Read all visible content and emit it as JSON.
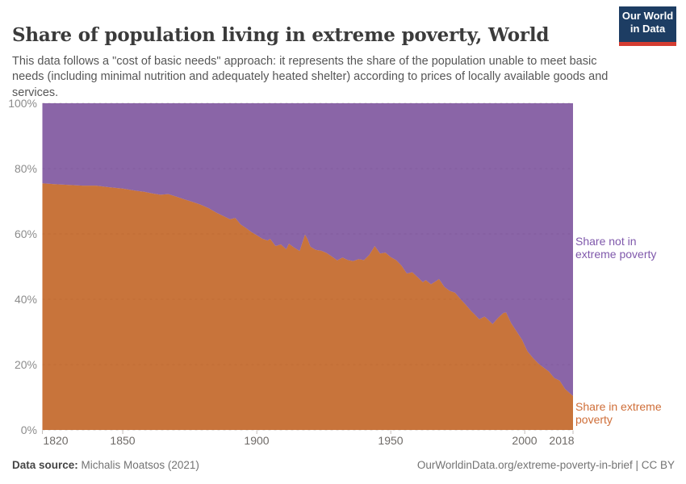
{
  "header": {
    "title": "Share of population living in extreme poverty, World",
    "subtitle": "This data follows a \"cost of basic needs\" approach: it represents the share of the population unable to meet basic needs (including minimal nutrition and adequately heated shelter) according to prices of locally available goods and services.",
    "logo": {
      "line1": "Our World",
      "line2": "in Data",
      "bg_color": "#1d3d63",
      "accent_color": "#d43c31"
    }
  },
  "chart_data": {
    "type": "area",
    "stacked": true,
    "title": "Share of population living in extreme poverty, World",
    "unit": "%",
    "x_range": [
      1820,
      2018
    ],
    "y_range": [
      0,
      100
    ],
    "grid": "dashed horizontal gridlines, legend as direct labels at right",
    "x_tick_labels": [
      "1820",
      "1850",
      "1900",
      "1950",
      "2000",
      "2018"
    ],
    "x_tick_years": [
      1820,
      1850,
      1900,
      1950,
      2000,
      2018
    ],
    "y_tick_labels": [
      "0%",
      "20%",
      "40%",
      "60%",
      "80%",
      "100%"
    ],
    "y_tick_values": [
      0,
      20,
      40,
      60,
      80,
      100
    ],
    "years": [
      1820,
      1825,
      1830,
      1835,
      1840,
      1845,
      1850,
      1855,
      1858,
      1861,
      1864,
      1867,
      1870,
      1873,
      1876,
      1879,
      1882,
      1885,
      1888,
      1890,
      1892,
      1894,
      1896,
      1898,
      1900,
      1902,
      1904,
      1905,
      1907,
      1909,
      1911,
      1912,
      1914,
      1916,
      1917,
      1918,
      1919,
      1920,
      1922,
      1924,
      1926,
      1928,
      1930,
      1932,
      1934,
      1936,
      1938,
      1940,
      1942,
      1944,
      1946,
      1948,
      1950,
      1952,
      1954,
      1956,
      1958,
      1960,
      1962,
      1963,
      1965,
      1967,
      1968,
      1970,
      1972,
      1974,
      1976,
      1978,
      1980,
      1981,
      1983,
      1985,
      1986,
      1988,
      1990,
      1992,
      1993,
      1995,
      1997,
      1999,
      2001,
      2003,
      2005,
      2007,
      2009,
      2011,
      2013,
      2015,
      2017,
      2018
    ],
    "series": [
      {
        "name": "Share in extreme poverty",
        "label_lines": [
          "Share in extreme",
          "poverty"
        ],
        "color": "#be5915",
        "fill_opacity": 0.84,
        "label_color": "#cf6e38",
        "values": [
          75.5,
          75.2,
          75.0,
          74.8,
          74.8,
          74.3,
          73.9,
          73.2,
          72.9,
          72.4,
          72.0,
          72.2,
          71.4,
          70.6,
          69.8,
          69.0,
          67.9,
          66.5,
          65.3,
          64.5,
          64.9,
          62.9,
          61.8,
          60.6,
          59.6,
          58.6,
          58.0,
          58.5,
          56.3,
          56.8,
          55.3,
          57.0,
          55.8,
          54.8,
          57.3,
          59.8,
          58.3,
          56.1,
          55.1,
          54.9,
          54.2,
          53.1,
          51.9,
          52.8,
          52.0,
          51.7,
          52.3,
          52.0,
          53.6,
          56.3,
          54.0,
          54.3,
          52.9,
          52.0,
          50.3,
          47.9,
          48.3,
          46.8,
          45.2,
          45.9,
          44.6,
          45.6,
          46.2,
          43.8,
          42.6,
          42.0,
          40.1,
          38.3,
          36.4,
          35.6,
          33.9,
          34.7,
          34.0,
          32.4,
          34.3,
          35.8,
          36.0,
          32.6,
          30.1,
          27.6,
          24.1,
          22.1,
          20.4,
          19.1,
          17.9,
          15.9,
          15.1,
          12.6,
          11.1,
          10.4
        ]
      },
      {
        "name": "Share not in extreme poverty",
        "label_lines": [
          "Share not in",
          "extreme poverty"
        ],
        "color": "#6d3e91",
        "fill_opacity": 0.8,
        "label_color": "#7f58ab",
        "values_note": "complement series: 100 minus 'Share in extreme poverty' for every year"
      }
    ]
  },
  "footer": {
    "data_source_label": "Data source:",
    "data_source_value": "Michalis Moatsos (2021)",
    "credit": "OurWorldinData.org/extreme-poverty-in-brief | CC BY"
  }
}
